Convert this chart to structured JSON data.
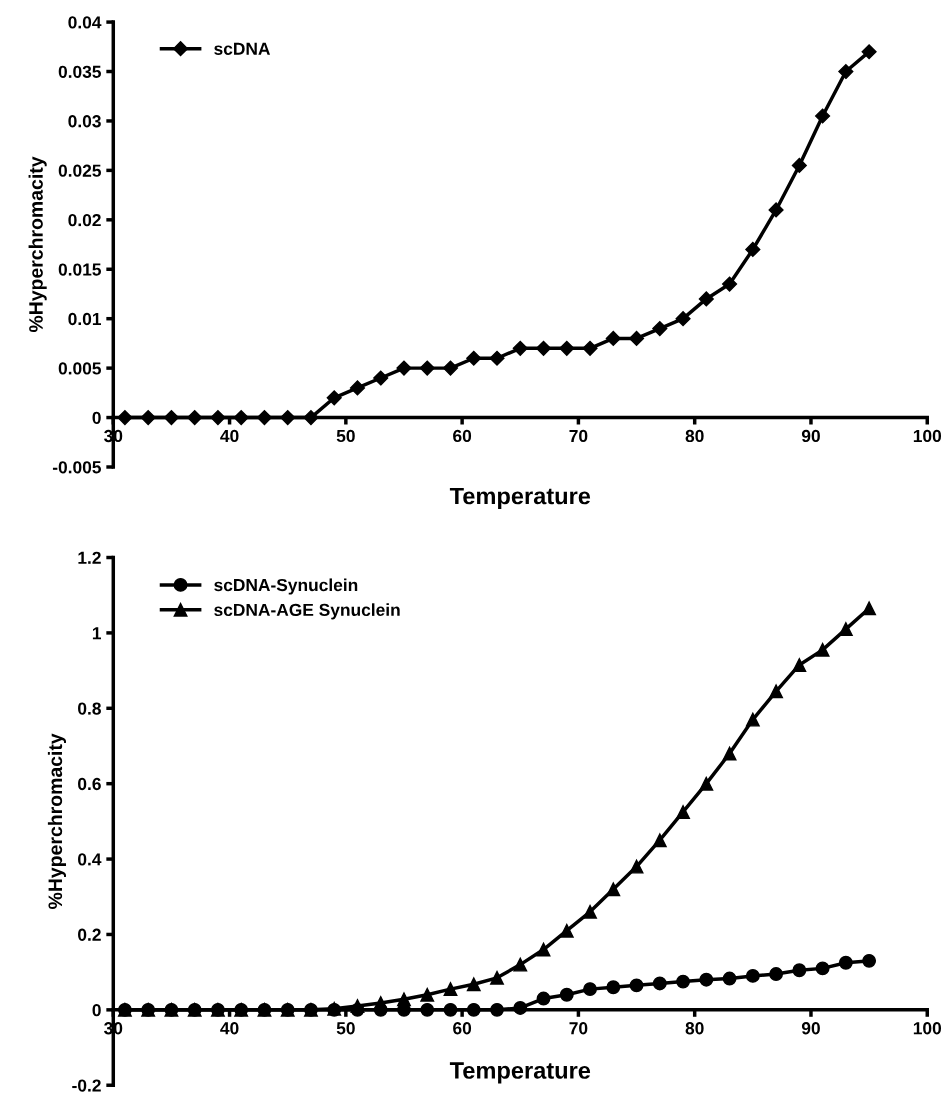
{
  "chart_data": [
    {
      "type": "line",
      "xlabel": "Temperature",
      "ylabel": "%Hyperchromacity",
      "xlim": [
        30,
        100
      ],
      "xticks": [
        30,
        40,
        50,
        60,
        70,
        80,
        90,
        100
      ],
      "ylim": [
        -0.005,
        0.04
      ],
      "yticks": [
        -0.005,
        0,
        0.005,
        0.01,
        0.015,
        0.02,
        0.025,
        0.03,
        0.035,
        0.04
      ],
      "grid": false,
      "legend": "top left",
      "x": [
        31,
        33,
        35,
        37,
        39,
        41,
        43,
        45,
        47,
        49,
        51,
        53,
        55,
        57,
        59,
        61,
        63,
        65,
        67,
        69,
        71,
        73,
        75,
        77,
        79,
        81,
        83,
        85,
        87,
        89,
        91,
        93,
        95
      ],
      "series": [
        {
          "name": "scDNA",
          "color": "#000000",
          "marker": "diamond",
          "values": [
            0,
            0,
            0,
            0,
            0,
            0,
            0,
            0,
            0,
            0.002,
            0.003,
            0.004,
            0.005,
            0.005,
            0.005,
            0.006,
            0.006,
            0.007,
            0.007,
            0.007,
            0.007,
            0.008,
            0.008,
            0.009,
            0.01,
            0.012,
            0.0135,
            0.017,
            0.021,
            0.0255,
            0.0305,
            0.035,
            0.037
          ]
        }
      ]
    },
    {
      "type": "line",
      "xlabel": "Temperature",
      "ylabel": "%Hyperchromacity",
      "xlim": [
        30,
        100
      ],
      "xticks": [
        30,
        40,
        50,
        60,
        70,
        80,
        90,
        100
      ],
      "ylim": [
        -0.2,
        1.2
      ],
      "yticks": [
        -0.2,
        0,
        0.2,
        0.4,
        0.6,
        0.8,
        1,
        1.2
      ],
      "grid": false,
      "legend": "top left",
      "x": [
        31,
        33,
        35,
        37,
        39,
        41,
        43,
        45,
        47,
        49,
        51,
        53,
        55,
        57,
        59,
        61,
        63,
        65,
        67,
        69,
        71,
        73,
        75,
        77,
        79,
        81,
        83,
        85,
        87,
        89,
        91,
        93,
        95
      ],
      "series": [
        {
          "name": "scDNA-Synuclein",
          "color": "#000000",
          "marker": "circle",
          "values": [
            0,
            0,
            0,
            0,
            0,
            0,
            0,
            0,
            0,
            0,
            0,
            0,
            0,
            0,
            0,
            0,
            0,
            0.005,
            0.03,
            0.04,
            0.055,
            0.06,
            0.065,
            0.07,
            0.075,
            0.08,
            0.083,
            0.09,
            0.095,
            0.105,
            0.11,
            0.125,
            0.13
          ]
        },
        {
          "name": "scDNA-AGE Synuclein",
          "color": "#000000",
          "marker": "triangle",
          "values": [
            0,
            0,
            0,
            0,
            0,
            0,
            0,
            0,
            0,
            0.003,
            0.01,
            0.018,
            0.028,
            0.04,
            0.055,
            0.068,
            0.085,
            0.12,
            0.16,
            0.21,
            0.26,
            0.32,
            0.38,
            0.45,
            0.525,
            0.6,
            0.68,
            0.77,
            0.845,
            0.915,
            0.955,
            1.01,
            1.065
          ]
        }
      ]
    }
  ]
}
